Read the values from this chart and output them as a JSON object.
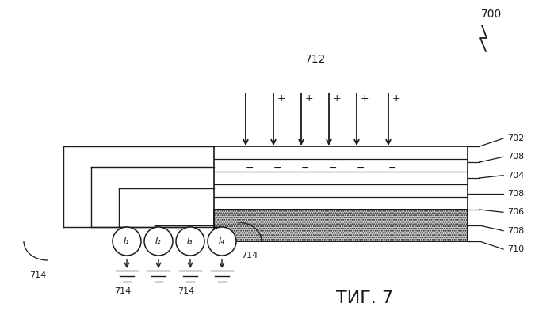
{
  "title": "ΤИГ. 7",
  "bg_color": "#ffffff",
  "line_color": "#1a1a1a",
  "label_700": "700",
  "label_712": "712",
  "lead_labels": [
    "702",
    "708",
    "704",
    "708",
    "706",
    "708",
    "710"
  ],
  "label_714": "714",
  "current_labels": [
    "I₁",
    "I₂",
    "I₃",
    "I₄"
  ],
  "fig_fontsize": 16,
  "small_fontsize": 9
}
